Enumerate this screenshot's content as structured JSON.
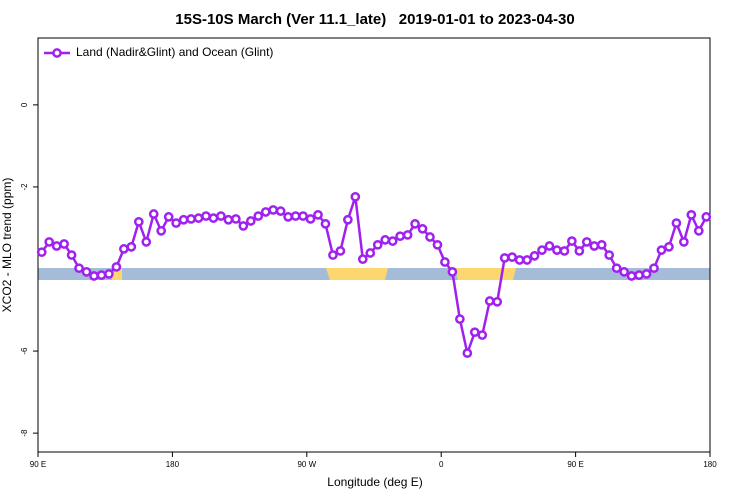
{
  "chart_data": {
    "type": "line",
    "title": "15S-10S March (Ver 11.1_late)   2019-01-01 to 2023-04-30",
    "x_label": "Longitude (deg E)",
    "y_label": "XCO2 - MLO trend (ppm)",
    "xlim": [
      90,
      540
    ],
    "ylim": [
      -8.46,
      1.63
    ],
    "xticks": [
      {
        "value": 90,
        "label": "90 E"
      },
      180,
      {
        "value": 270,
        "label": "90 W"
      },
      {
        "value": 360,
        "label": "0"
      },
      {
        "value": 450,
        "label": "90 E"
      },
      {
        "value": 540,
        "label": "180"
      }
    ],
    "yticks": [
      0,
      -2,
      -6,
      -8
    ],
    "grid": false,
    "legend_position": "top-left",
    "x": [
      92.5,
      97.5,
      102.5,
      107.5,
      112.5,
      117.5,
      122.5,
      127.5,
      132.5,
      137.5,
      142.5,
      147.5,
      152.5,
      157.5,
      162.5,
      167.5,
      172.5,
      177.5,
      182.5,
      187.5,
      192.5,
      197.5,
      202.5,
      207.5,
      212.5,
      217.5,
      222.5,
      227.5,
      232.5,
      237.5,
      242.5,
      247.5,
      252.5,
      257.5,
      262.5,
      267.5,
      272.5,
      277.5,
      282.5,
      287.5,
      292.5,
      297.5,
      302.5,
      307.5,
      312.5,
      317.5,
      322.5,
      327.5,
      332.5,
      337.5,
      342.5,
      347.5,
      352.5,
      357.5,
      362.5,
      367.5,
      372.5,
      377.5,
      382.5,
      387.5,
      392.5,
      397.5,
      402.5,
      407.5,
      412.5,
      417.5,
      422.5,
      427.5,
      432.5,
      437.5,
      442.5,
      447.5,
      452.5,
      457.5,
      462.5,
      467.5,
      472.5,
      477.5,
      482.5,
      487.5,
      492.5,
      497.5,
      502.5,
      507.5,
      512.5,
      517.5,
      522.5,
      527.5,
      532.5,
      537.5
    ],
    "series": [
      {
        "name": "Land (Nadir&Glint) and Ocean (Glint)",
        "color": "#a020f0",
        "values": [
          -3.59,
          -3.34,
          -3.44,
          -3.39,
          -3.66,
          -3.98,
          -4.07,
          -4.17,
          -4.15,
          -4.12,
          -3.95,
          -3.51,
          -3.46,
          -2.85,
          -3.34,
          -2.66,
          -3.07,
          -2.73,
          -2.88,
          -2.8,
          -2.78,
          -2.76,
          -2.71,
          -2.76,
          -2.71,
          -2.8,
          -2.78,
          -2.95,
          -2.83,
          -2.71,
          -2.61,
          -2.56,
          -2.59,
          -2.73,
          -2.71,
          -2.71,
          -2.78,
          -2.68,
          -2.9,
          -3.66,
          -3.56,
          -2.8,
          -2.24,
          -3.76,
          -3.61,
          -3.41,
          -3.29,
          -3.32,
          -3.2,
          -3.17,
          -2.9,
          -3.02,
          -3.22,
          -3.41,
          -3.83,
          -4.07,
          -5.22,
          -6.05,
          -5.54,
          -5.61,
          -4.78,
          -4.8,
          -3.73,
          -3.71,
          -3.78,
          -3.78,
          -3.68,
          -3.54,
          -3.44,
          -3.54,
          -3.56,
          -3.32,
          -3.56,
          -3.34,
          -3.44,
          -3.41,
          -3.66,
          -3.98,
          -4.07,
          -4.17,
          -4.15,
          -4.12,
          -3.98,
          -3.54,
          -3.46,
          -2.88,
          -3.34,
          -2.68,
          -3.07,
          -2.73
        ]
      }
    ]
  }
}
